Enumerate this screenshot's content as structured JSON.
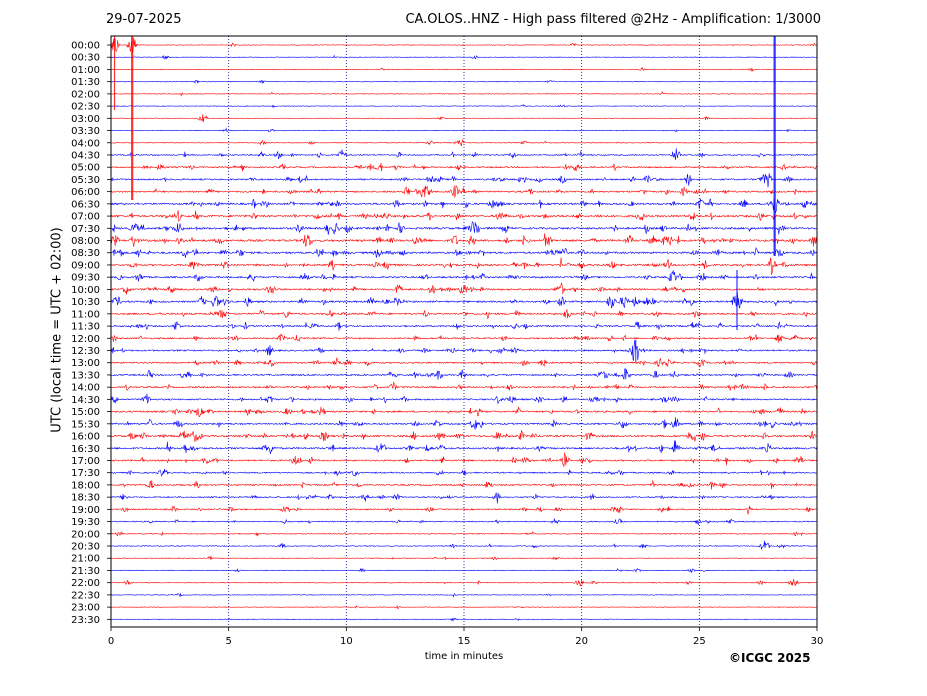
{
  "header": {
    "date": "29-07-2025",
    "station": "CA.OLOS..HNZ - High pass filtered @2Hz - Amplification: 1/3000"
  },
  "footer": {
    "copyright": "©ICGC 2025"
  },
  "colors": {
    "red": "#ff0000",
    "blue": "#0000ff",
    "grid": "#000080",
    "frame": "#000000"
  },
  "chart_data": {
    "type": "line",
    "title": "CA.OLOS..HNZ - High pass filtered @2Hz - Amplification: 1/3000",
    "xlabel": "time in minutes",
    "ylabel": "UTC (local time = UTC + 02:00)",
    "xlim": [
      0,
      30
    ],
    "xticks": [
      "0",
      "5",
      "10",
      "15",
      "20",
      "25",
      "30"
    ],
    "grid": "vertical dotted at each x tick",
    "rows": [
      "00:00",
      "00:30",
      "01:00",
      "01:30",
      "02:00",
      "02:30",
      "03:00",
      "03:30",
      "04:00",
      "04:30",
      "05:00",
      "05:30",
      "06:00",
      "06:30",
      "07:00",
      "07:30",
      "08:00",
      "08:30",
      "09:00",
      "09:30",
      "10:00",
      "10:30",
      "11:00",
      "11:30",
      "12:00",
      "12:30",
      "13:00",
      "13:30",
      "14:00",
      "14:30",
      "15:00",
      "15:30",
      "16:00",
      "16:30",
      "17:00",
      "17:30",
      "18:00",
      "18:30",
      "19:00",
      "19:30",
      "20:00",
      "20:30",
      "21:00",
      "21:30",
      "22:00",
      "22:30",
      "23:00",
      "23:30"
    ],
    "row_colors": "alternating red / blue starting with red at 00:00",
    "noise_level": [
      0.1,
      0.1,
      0.1,
      0.1,
      0.1,
      0.1,
      0.1,
      0.15,
      0.2,
      0.6,
      0.8,
      0.9,
      1.0,
      1.1,
      1.3,
      1.3,
      1.4,
      1.2,
      1.2,
      1.0,
      1.1,
      1.1,
      1.0,
      0.9,
      0.9,
      0.9,
      0.9,
      0.9,
      0.9,
      0.9,
      1.0,
      1.0,
      1.2,
      1.1,
      0.9,
      0.7,
      0.8,
      0.7,
      0.7,
      0.5,
      0.3,
      0.3,
      0.2,
      0.2,
      0.2,
      0.1,
      0.1,
      0.1
    ],
    "events": [
      {
        "row": "00:00",
        "x": 0.15,
        "amp": 45
      },
      {
        "row": "00:00",
        "x": 0.9,
        "amp": 55
      },
      {
        "row": "03:00",
        "x": 3.9,
        "amp": 4
      },
      {
        "row": "04:00",
        "x": 14.8,
        "amp": 3
      },
      {
        "row": "04:30",
        "x": 24.0,
        "amp": 7
      },
      {
        "row": "05:30",
        "x": 27.9,
        "amp": 8
      },
      {
        "row": "06:30",
        "x": 28.2,
        "amp": 100
      },
      {
        "row": "12:30",
        "x": 22.3,
        "amp": 12
      },
      {
        "row": "10:30",
        "x": 26.6,
        "amp": 20
      },
      {
        "row": "13:30",
        "x": 13.9,
        "amp": 5
      },
      {
        "row": "15:30",
        "x": 24.0,
        "amp": 6
      },
      {
        "row": "17:00",
        "x": 19.3,
        "amp": 5
      },
      {
        "row": "20:30",
        "x": 27.8,
        "amp": 5
      },
      {
        "row": "22:00",
        "x": 19.9,
        "amp": 4
      },
      {
        "row": "22:00",
        "x": 29.0,
        "amp": 4
      }
    ]
  }
}
